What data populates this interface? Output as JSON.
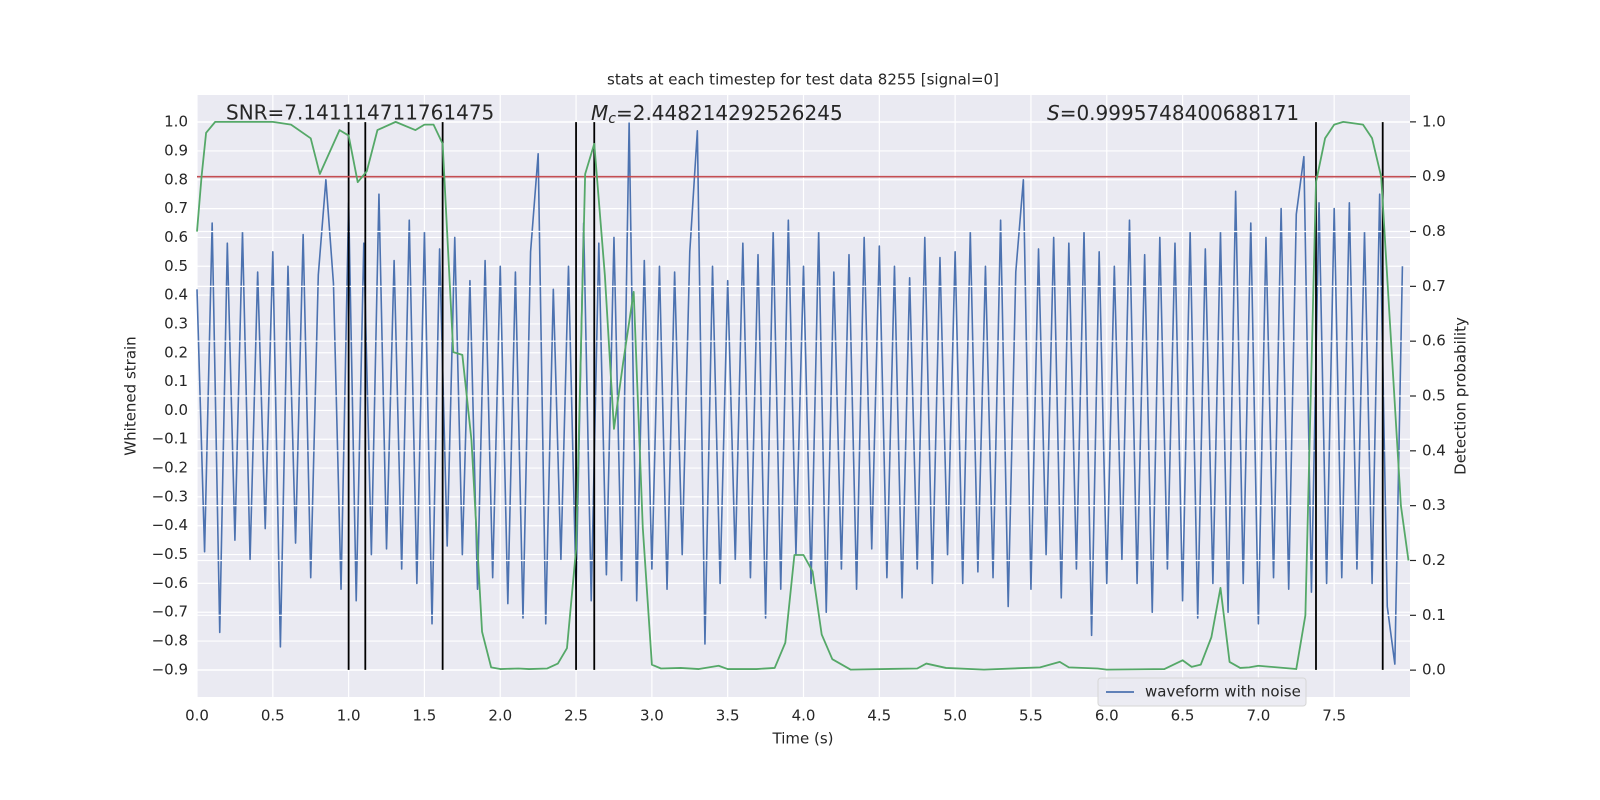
{
  "chart_data": {
    "type": "line",
    "title": "stats at each timestep for test data 8255 [signal=0]",
    "xlabel": "Time (s)",
    "ylabel": "Whitened strain",
    "y2label": "Detection probability",
    "annotations": [
      {
        "text": "SNR=7.141114711761475"
      },
      {
        "symbol": "M",
        "subscript": "c",
        "text": "=2.448214292526245"
      },
      {
        "symbol": "S",
        "text": "=0.9995748400688171"
      }
    ],
    "xlim": [
      0,
      8
    ],
    "ylim": [
      -0.994,
      1.094
    ],
    "y2lim": [
      -0.049,
      1.049
    ],
    "xticks": [
      {
        "value": 0,
        "label": "0.0"
      },
      0.5,
      {
        "value": 1,
        "label": "1.0"
      },
      1.5,
      {
        "value": 2,
        "label": "2.0"
      },
      2.5,
      {
        "value": 3,
        "label": "3.0"
      },
      3.5,
      {
        "value": 4,
        "label": "4.0"
      },
      4.5,
      {
        "value": 5,
        "label": "5.0"
      },
      5.5,
      {
        "value": 6,
        "label": "6.0"
      },
      6.5,
      {
        "value": 7,
        "label": "7.0"
      },
      7.5
    ],
    "yticks": [
      {
        "value": -0.9,
        "label": "−0.9"
      },
      {
        "value": -0.8,
        "label": "−0.8"
      },
      {
        "value": -0.7,
        "label": "−0.7"
      },
      {
        "value": -0.6,
        "label": "−0.6"
      },
      {
        "value": -0.5,
        "label": "−0.5"
      },
      {
        "value": -0.4,
        "label": "−0.4"
      },
      {
        "value": -0.3,
        "label": "−0.3"
      },
      {
        "value": -0.2,
        "label": "−0.2"
      },
      {
        "value": -0.1,
        "label": "−0.1"
      },
      {
        "value": 0,
        "label": "0.0"
      },
      0.1,
      0.2,
      0.3,
      0.4,
      0.5,
      0.6,
      0.7,
      0.8,
      0.9,
      {
        "value": 1,
        "label": "1.0"
      }
    ],
    "y2ticks": [
      {
        "value": 0,
        "label": "0.0"
      },
      0.1,
      0.2,
      0.3,
      0.4,
      0.5,
      0.6,
      0.7,
      0.8,
      0.9,
      {
        "value": 1,
        "label": "1.0"
      }
    ],
    "grid": true,
    "legend": "lower right",
    "series": [
      {
        "name": "waveform with noise",
        "color": "#4c72b0",
        "x": [
          0,
          0.05,
          0.1,
          0.15,
          0.2,
          0.25,
          0.3,
          0.35,
          0.4,
          0.45,
          0.5,
          0.55,
          0.6,
          0.65,
          0.7,
          0.75,
          0.8,
          0.85,
          0.9,
          0.95,
          1,
          1.05,
          1.1,
          1.15,
          1.2,
          1.25,
          1.3,
          1.35,
          1.4,
          1.45,
          1.5,
          1.55,
          1.6,
          1.65,
          1.7,
          1.75,
          1.8,
          1.85,
          1.9,
          1.95,
          2,
          2.05,
          2.1,
          2.15,
          2.2,
          2.25,
          2.3,
          2.35,
          2.4,
          2.45,
          2.5,
          2.55,
          2.6,
          2.65,
          2.7,
          2.75,
          2.8,
          2.85,
          2.9,
          2.95,
          3,
          3.05,
          3.1,
          3.15,
          3.2,
          3.25,
          3.3,
          3.35,
          3.4,
          3.45,
          3.5,
          3.55,
          3.6,
          3.65,
          3.7,
          3.75,
          3.8,
          3.85,
          3.9,
          3.95,
          4,
          4.05,
          4.1,
          4.15,
          4.2,
          4.25,
          4.3,
          4.35,
          4.4,
          4.45,
          4.5,
          4.55,
          4.6,
          4.65,
          4.7,
          4.75,
          4.8,
          4.85,
          4.9,
          4.95,
          5,
          5.05,
          5.1,
          5.15,
          5.2,
          5.25,
          5.3,
          5.35,
          5.4,
          5.45,
          5.5,
          5.55,
          5.6,
          5.65,
          5.7,
          5.75,
          5.8,
          5.85,
          5.9,
          5.95,
          6,
          6.05,
          6.1,
          6.15,
          6.2,
          6.25,
          6.3,
          6.35,
          6.4,
          6.45,
          6.5,
          6.55,
          6.6,
          6.65,
          6.7,
          6.75,
          6.8,
          6.85,
          6.9,
          6.95,
          7,
          7.05,
          7.1,
          7.15,
          7.2,
          7.25,
          7.3,
          7.35,
          7.4,
          7.45,
          7.5,
          7.55,
          7.6,
          7.65,
          7.7,
          7.75,
          7.8,
          7.85,
          7.9,
          7.95
        ],
        "values": [
          0.42,
          -0.49,
          0.65,
          -0.77,
          0.58,
          -0.45,
          0.62,
          -0.52,
          0.48,
          -0.41,
          0.55,
          -0.82,
          0.5,
          -0.46,
          0.61,
          -0.58,
          0.47,
          0.8,
          0.44,
          -0.62,
          0.72,
          -0.66,
          0.58,
          -0.5,
          0.75,
          -0.48,
          0.52,
          -0.55,
          0.66,
          -0.6,
          0.62,
          -0.74,
          0.56,
          -0.47,
          0.6,
          -0.5,
          0.45,
          -0.62,
          0.52,
          -0.58,
          0.5,
          -0.67,
          0.48,
          -0.72,
          0.55,
          0.89,
          -0.74,
          0.42,
          -0.52,
          0.5,
          -0.62,
          0.65,
          -0.66,
          0.58,
          -0.57,
          0.6,
          -0.59,
          1.0,
          -0.66,
          0.52,
          -0.55,
          0.5,
          -0.62,
          0.48,
          -0.5,
          0.55,
          0.97,
          -0.81,
          0.5,
          -0.6,
          0.45,
          -0.52,
          0.58,
          -0.58,
          0.54,
          -0.72,
          0.62,
          -0.62,
          0.66,
          -0.5,
          0.5,
          -0.6,
          0.62,
          -0.7,
          0.48,
          -0.55,
          0.54,
          -0.62,
          0.6,
          -0.48,
          0.57,
          -0.58,
          0.5,
          -0.65,
          0.46,
          -0.55,
          0.6,
          -0.6,
          0.53,
          -0.5,
          0.55,
          -0.6,
          0.62,
          -0.56,
          0.5,
          -0.58,
          0.66,
          -0.68,
          0.48,
          0.8,
          -0.62,
          0.56,
          -0.5,
          0.6,
          -0.65,
          0.58,
          -0.55,
          0.62,
          -0.78,
          0.55,
          -0.6,
          0.5,
          -0.52,
          0.66,
          -0.6,
          0.54,
          -0.7,
          0.6,
          -0.55,
          0.58,
          -0.66,
          0.62,
          -0.72,
          0.56,
          -0.6,
          0.62,
          -0.7,
          0.76,
          -0.6,
          0.65,
          -0.74,
          0.6,
          -0.58,
          0.7,
          -0.62,
          0.68,
          0.88,
          -0.63,
          0.72,
          -0.6,
          0.7,
          -0.58,
          0.72,
          -0.55,
          0.62,
          -0.6,
          0.75,
          -0.68,
          -0.88,
          0.5
        ]
      }
    ],
    "probability": {
      "color": "#55a868",
      "axis": "y2",
      "x": [
        0,
        0.03,
        0.06,
        0.12,
        0.25,
        0.5,
        0.62,
        0.75,
        0.81,
        0.94,
        1.0,
        1.06,
        1.12,
        1.19,
        1.31,
        1.44,
        1.5,
        1.56,
        1.62,
        1.69,
        1.75,
        1.81,
        1.88,
        1.94,
        2.0,
        2.12,
        2.19,
        2.31,
        2.38,
        2.44,
        2.5,
        2.56,
        2.62,
        2.69,
        2.75,
        2.81,
        2.88,
        2.94,
        3.0,
        3.06,
        3.19,
        3.31,
        3.44,
        3.5,
        3.69,
        3.81,
        3.88,
        3.94,
        4.0,
        4.06,
        4.12,
        4.19,
        4.31,
        4.75,
        4.81,
        4.94,
        5.19,
        5.56,
        5.69,
        5.75,
        5.94,
        6.0,
        6.38,
        6.5,
        6.56,
        6.62,
        6.69,
        6.75,
        6.81,
        6.88,
        6.94,
        7.0,
        7.25,
        7.31,
        7.38,
        7.44,
        7.5,
        7.56,
        7.69,
        7.75,
        7.81,
        7.94,
        7.99
      ],
      "values": [
        0.8,
        0.9,
        0.98,
        1.0,
        1.0,
        1.0,
        0.995,
        0.97,
        0.905,
        0.985,
        0.975,
        0.89,
        0.91,
        0.985,
        1.0,
        0.985,
        0.995,
        0.995,
        0.96,
        0.58,
        0.575,
        0.42,
        0.07,
        0.005,
        0.002,
        0.003,
        0.002,
        0.003,
        0.012,
        0.04,
        0.22,
        0.905,
        0.96,
        0.72,
        0.44,
        0.56,
        0.69,
        0.26,
        0.01,
        0.003,
        0.004,
        0.002,
        0.008,
        0.002,
        0.002,
        0.004,
        0.05,
        0.21,
        0.21,
        0.18,
        0.065,
        0.02,
        0.001,
        0.003,
        0.012,
        0.004,
        0.001,
        0.005,
        0.015,
        0.005,
        0.003,
        0.001,
        0.002,
        0.018,
        0.006,
        0.01,
        0.06,
        0.15,
        0.015,
        0.004,
        0.005,
        0.008,
        0.002,
        0.1,
        0.89,
        0.97,
        0.995,
        1.0,
        0.995,
        0.97,
        0.9,
        0.3,
        0.2
      ]
    },
    "threshold": {
      "value": 0.9,
      "color": "#c44e52",
      "axis": "y2"
    },
    "vlines": {
      "x": [
        1.0,
        1.11,
        1.62,
        2.5,
        2.62,
        7.38,
        7.82
      ],
      "color": "#000000"
    }
  }
}
